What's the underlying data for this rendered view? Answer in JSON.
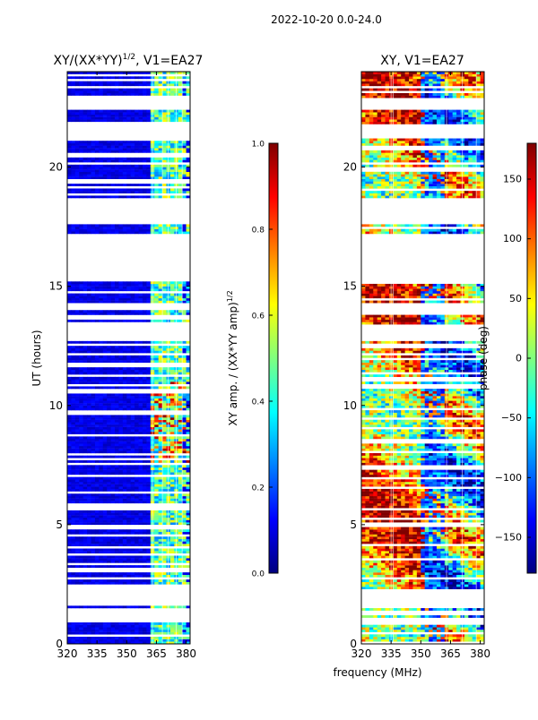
{
  "figure": {
    "suptitle": "2022-10-20 0.0-24.0",
    "shared_xlabel": "frequency (MHz)"
  },
  "chart_data": [
    {
      "type": "heatmap",
      "title_main": "XY/(XX*YY)",
      "title_sup": "1/2",
      "title_tail": ", V1=EA27",
      "xlabel": "",
      "ylabel": "UT (hours)",
      "xlim": [
        320,
        382
      ],
      "ylim": [
        0,
        24
      ],
      "xticks": [
        320,
        335,
        350,
        365,
        380
      ],
      "yticks": [
        0,
        5,
        10,
        15,
        20
      ],
      "colorbar": {
        "label_main": "XY amp. / (XX*YY amp)",
        "label_sup": "1/2",
        "ticks": [
          "0.0",
          "0.2",
          "0.4",
          "0.6",
          "0.8",
          "1.0"
        ],
        "tick_values": [
          0,
          0.2,
          0.4,
          0.6,
          0.8,
          1.0
        ],
        "range": [
          0,
          1
        ],
        "colormap": "jet"
      }
    },
    {
      "type": "heatmap",
      "title": "XY, V1=EA27",
      "xlabel": "frequency (MHz)",
      "ylabel": "",
      "xlim": [
        320,
        382
      ],
      "ylim": [
        0,
        24
      ],
      "xticks": [
        320,
        335,
        350,
        365,
        380
      ],
      "yticks": [
        0,
        5,
        10,
        15,
        20
      ],
      "colorbar": {
        "label": "phase (deg)",
        "ticks": [
          "150",
          "100",
          "50",
          "0",
          "−50",
          "−100",
          "−150"
        ],
        "tick_values": [
          150,
          100,
          50,
          0,
          -50,
          -100,
          -150
        ],
        "range": [
          -180,
          180
        ],
        "colormap": "jet"
      }
    }
  ],
  "colors": {
    "background": "#ffffff",
    "axis": "#000000",
    "jet": [
      "#00007f",
      "#0000ff",
      "#007fff",
      "#00ffff",
      "#7fff7f",
      "#ffff00",
      "#ff7f00",
      "#ff0000",
      "#7f0000"
    ]
  }
}
